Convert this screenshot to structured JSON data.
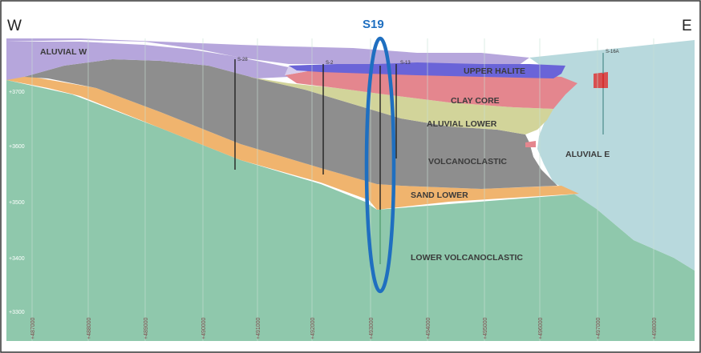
{
  "header": {
    "west_label": "W",
    "east_label": "E",
    "highlight_label": "S19"
  },
  "units": {
    "aluvial_w": "ALUVIAL W",
    "upper_halite": "UPPER HALITE",
    "clay_core": "CLAY CORE",
    "aluvial_lower": "ALUVIAL LOWER",
    "volcanoclastic": "VOLCANOCLASTIC",
    "aluvial_e": "ALUVIAL E",
    "sand_lower": "SAND LOWER",
    "lower_volcanoclastic": "LOWER VOLCANOCLASTIC"
  },
  "elevations": [
    "+3700",
    "+3600",
    "+3500",
    "+3400",
    "+3300"
  ],
  "boreholes": [
    "S-28",
    "S-2",
    "S-13",
    "S-16A"
  ],
  "eastings": [
    "+487000",
    "+488000",
    "+489000",
    "+490000",
    "+491000",
    "+492000",
    "+493000",
    "+494000",
    "+495000",
    "+496000",
    "+497000",
    "+498000"
  ],
  "colors": {
    "aluvial_w": "#b6a6dc",
    "upper_halite": "#6a64d8",
    "clay_core": "#e4868e",
    "aluvial_lower": "#d2d49a",
    "volcanoclastic": "#8e8e8e",
    "aluvial_e": "#b8d9dd",
    "sand_lower": "#f0b46e",
    "lower_volcanoclastic": "#8fc8ac",
    "highlight": "#1f6fc0"
  }
}
